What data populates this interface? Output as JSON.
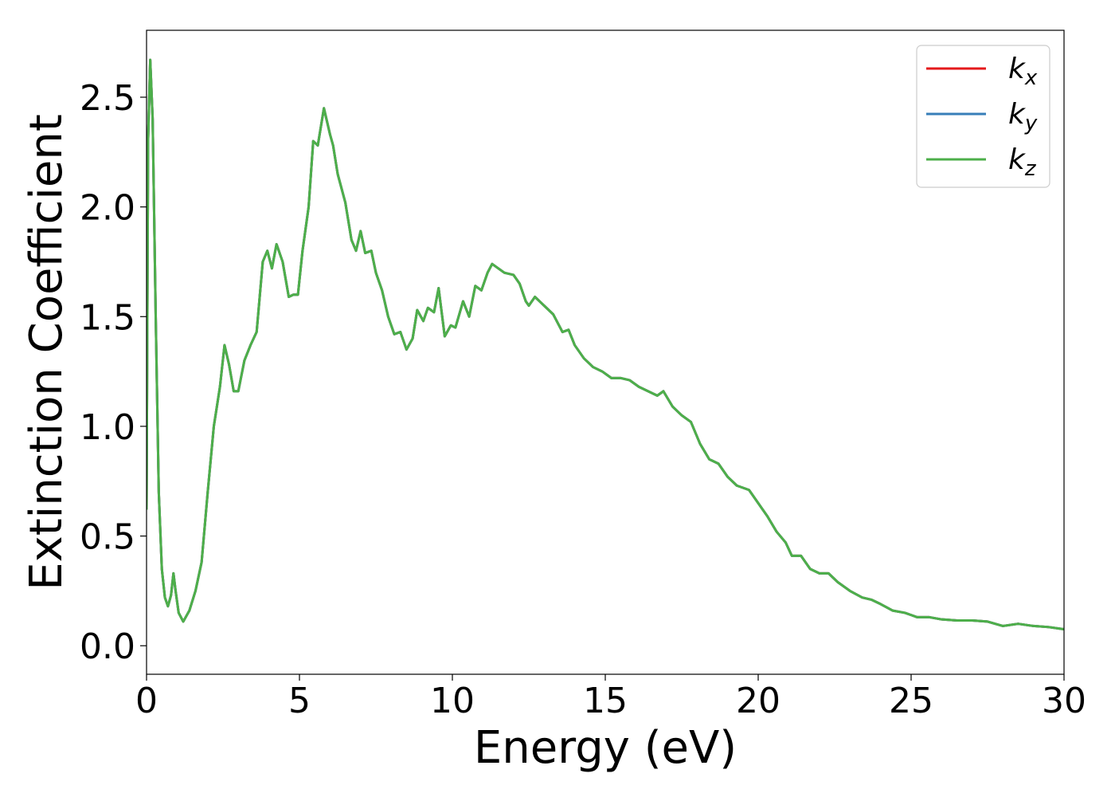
{
  "chart_data": {
    "type": "line",
    "xlabel": "Energy (eV)",
    "ylabel": "Extinction Coefficient",
    "x": [
      0,
      0.05,
      0.12,
      0.2,
      0.3,
      0.4,
      0.5,
      0.6,
      0.7,
      0.8,
      0.88,
      0.95,
      1.05,
      1.2,
      1.4,
      1.6,
      1.8,
      2.0,
      2.2,
      2.4,
      2.55,
      2.7,
      2.85,
      3.0,
      3.2,
      3.4,
      3.6,
      3.8,
      3.95,
      4.1,
      4.25,
      4.45,
      4.65,
      4.8,
      4.95,
      5.1,
      5.3,
      5.45,
      5.6,
      5.8,
      6.0,
      6.1,
      6.25,
      6.5,
      6.7,
      6.85,
      7.0,
      7.15,
      7.35,
      7.5,
      7.7,
      7.9,
      8.1,
      8.3,
      8.5,
      8.7,
      8.85,
      9.05,
      9.2,
      9.4,
      9.55,
      9.75,
      9.95,
      10.1,
      10.35,
      10.55,
      10.75,
      10.95,
      11.15,
      11.3,
      11.5,
      11.7,
      12.0,
      12.2,
      12.4,
      12.5,
      12.7,
      13.0,
      13.3,
      13.6,
      13.8,
      14.0,
      14.3,
      14.6,
      14.9,
      15.2,
      15.5,
      15.8,
      16.1,
      16.4,
      16.7,
      16.9,
      17.2,
      17.5,
      17.8,
      18.1,
      18.4,
      18.7,
      19.0,
      19.3,
      19.7,
      20.0,
      20.3,
      20.6,
      20.9,
      21.1,
      21.4,
      21.7,
      22.0,
      22.3,
      22.6,
      23.0,
      23.4,
      23.7,
      24.0,
      24.4,
      24.8,
      25.2,
      25.6,
      26.0,
      26.5,
      27.0,
      27.5,
      28.0,
      28.5,
      29.0,
      29.5,
      30.0
    ],
    "series": [
      {
        "name": "kx",
        "color": "#e41a1c",
        "values": [
          0.62,
          2.3,
          2.67,
          2.4,
          1.5,
          0.7,
          0.35,
          0.22,
          0.18,
          0.23,
          0.33,
          0.25,
          0.15,
          0.11,
          0.16,
          0.25,
          0.38,
          0.7,
          1.0,
          1.18,
          1.37,
          1.28,
          1.16,
          1.16,
          1.3,
          1.37,
          1.43,
          1.75,
          1.8,
          1.72,
          1.83,
          1.75,
          1.59,
          1.6,
          1.6,
          1.8,
          2.0,
          2.3,
          2.28,
          2.45,
          2.33,
          2.28,
          2.15,
          2.02,
          1.85,
          1.8,
          1.89,
          1.79,
          1.8,
          1.7,
          1.62,
          1.5,
          1.42,
          1.43,
          1.35,
          1.4,
          1.53,
          1.48,
          1.54,
          1.52,
          1.63,
          1.41,
          1.46,
          1.45,
          1.57,
          1.5,
          1.64,
          1.62,
          1.7,
          1.74,
          1.72,
          1.7,
          1.69,
          1.65,
          1.57,
          1.55,
          1.59,
          1.55,
          1.51,
          1.43,
          1.44,
          1.37,
          1.31,
          1.27,
          1.25,
          1.22,
          1.22,
          1.21,
          1.18,
          1.16,
          1.14,
          1.16,
          1.09,
          1.05,
          1.02,
          0.92,
          0.85,
          0.83,
          0.77,
          0.73,
          0.71,
          0.65,
          0.59,
          0.52,
          0.47,
          0.41,
          0.41,
          0.35,
          0.33,
          0.33,
          0.29,
          0.25,
          0.22,
          0.21,
          0.19,
          0.16,
          0.15,
          0.13,
          0.13,
          0.12,
          0.115,
          0.115,
          0.11,
          0.09,
          0.1,
          0.09,
          0.085,
          0.075
        ]
      },
      {
        "name": "ky",
        "color": "#377eb8",
        "values": [
          0.62,
          2.3,
          2.67,
          2.4,
          1.5,
          0.7,
          0.35,
          0.22,
          0.18,
          0.23,
          0.33,
          0.25,
          0.15,
          0.11,
          0.16,
          0.25,
          0.38,
          0.7,
          1.0,
          1.18,
          1.37,
          1.28,
          1.16,
          1.16,
          1.3,
          1.37,
          1.43,
          1.75,
          1.8,
          1.72,
          1.83,
          1.75,
          1.59,
          1.6,
          1.6,
          1.8,
          2.0,
          2.3,
          2.28,
          2.45,
          2.33,
          2.28,
          2.15,
          2.02,
          1.85,
          1.8,
          1.89,
          1.79,
          1.8,
          1.7,
          1.62,
          1.5,
          1.42,
          1.43,
          1.35,
          1.4,
          1.53,
          1.48,
          1.54,
          1.52,
          1.63,
          1.41,
          1.46,
          1.45,
          1.57,
          1.5,
          1.64,
          1.62,
          1.7,
          1.74,
          1.72,
          1.7,
          1.69,
          1.65,
          1.57,
          1.55,
          1.59,
          1.55,
          1.51,
          1.43,
          1.44,
          1.37,
          1.31,
          1.27,
          1.25,
          1.22,
          1.22,
          1.21,
          1.18,
          1.16,
          1.14,
          1.16,
          1.09,
          1.05,
          1.02,
          0.92,
          0.85,
          0.83,
          0.77,
          0.73,
          0.71,
          0.65,
          0.59,
          0.52,
          0.47,
          0.41,
          0.41,
          0.35,
          0.33,
          0.33,
          0.29,
          0.25,
          0.22,
          0.21,
          0.19,
          0.16,
          0.15,
          0.13,
          0.13,
          0.12,
          0.115,
          0.115,
          0.11,
          0.09,
          0.1,
          0.09,
          0.085,
          0.075
        ]
      },
      {
        "name": "kz",
        "color": "#4daf4a",
        "values": [
          0.62,
          2.3,
          2.67,
          2.4,
          1.5,
          0.7,
          0.35,
          0.22,
          0.18,
          0.23,
          0.33,
          0.25,
          0.15,
          0.11,
          0.16,
          0.25,
          0.38,
          0.7,
          1.0,
          1.18,
          1.37,
          1.28,
          1.16,
          1.16,
          1.3,
          1.37,
          1.43,
          1.75,
          1.8,
          1.72,
          1.83,
          1.75,
          1.59,
          1.6,
          1.6,
          1.8,
          2.0,
          2.3,
          2.28,
          2.45,
          2.33,
          2.28,
          2.15,
          2.02,
          1.85,
          1.8,
          1.89,
          1.79,
          1.8,
          1.7,
          1.62,
          1.5,
          1.42,
          1.43,
          1.35,
          1.4,
          1.53,
          1.48,
          1.54,
          1.52,
          1.63,
          1.41,
          1.46,
          1.45,
          1.57,
          1.5,
          1.64,
          1.62,
          1.7,
          1.74,
          1.72,
          1.7,
          1.69,
          1.65,
          1.57,
          1.55,
          1.59,
          1.55,
          1.51,
          1.43,
          1.44,
          1.37,
          1.31,
          1.27,
          1.25,
          1.22,
          1.22,
          1.21,
          1.18,
          1.16,
          1.14,
          1.16,
          1.09,
          1.05,
          1.02,
          0.92,
          0.85,
          0.83,
          0.77,
          0.73,
          0.71,
          0.65,
          0.59,
          0.52,
          0.47,
          0.41,
          0.41,
          0.35,
          0.33,
          0.33,
          0.29,
          0.25,
          0.22,
          0.21,
          0.19,
          0.16,
          0.15,
          0.13,
          0.13,
          0.12,
          0.115,
          0.115,
          0.11,
          0.09,
          0.1,
          0.09,
          0.085,
          0.075
        ]
      }
    ],
    "xlim": [
      0,
      30
    ],
    "xticks": [
      0,
      5,
      10,
      15,
      20,
      25,
      30
    ],
    "ylim": [
      -0.13,
      2.805
    ],
    "yticks": [
      {
        "value": 0,
        "label": "0.0"
      },
      0.5,
      {
        "value": 1,
        "label": "1.0"
      },
      1.5,
      {
        "value": 2,
        "label": "2.0"
      },
      2.5
    ],
    "grid": false,
    "legend": "upper right"
  }
}
